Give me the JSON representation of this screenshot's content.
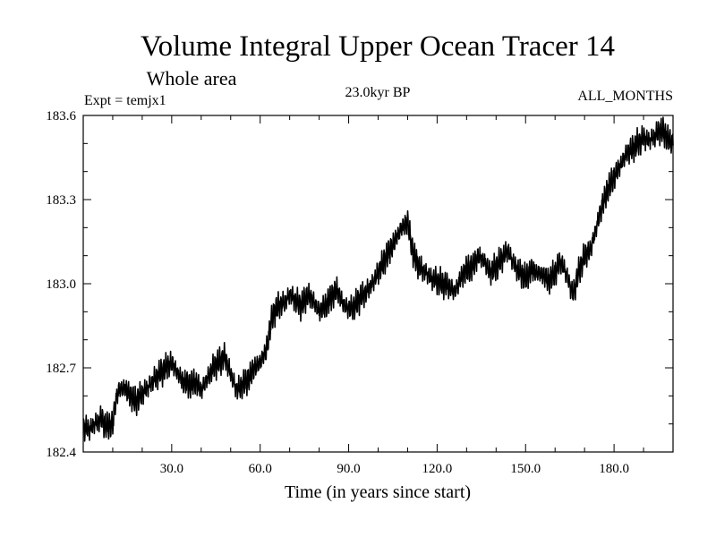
{
  "header": {
    "title": "Volume Integral Upper Ocean Tracer 14",
    "subtitle": "Whole area",
    "experiment": "Expt = temjx1",
    "epoch": "23.0kyr BP",
    "months": "ALL_MONTHS"
  },
  "chart_data": {
    "type": "line",
    "title": "Volume Integral Upper Ocean Tracer 14",
    "subtitle": "Whole area",
    "xlabel": "Time (in years since start)",
    "ylabel": "",
    "xlim": [
      0,
      200
    ],
    "ylim": [
      182.4,
      183.6
    ],
    "xticks": [
      30,
      60,
      90,
      120,
      150,
      180
    ],
    "xtick_labels": [
      "30.0",
      "60.0",
      "90.0",
      "120.0",
      "150.0",
      "180.0"
    ],
    "yticks": [
      182.4,
      182.7,
      183.0,
      183.3,
      183.6
    ],
    "ytick_labels": [
      "182.4",
      "182.7",
      "183.0",
      "183.3",
      "183.6"
    ],
    "grid": false,
    "legend": "none",
    "line_color": "#000000",
    "series": [
      {
        "x": [
          0,
          2,
          4,
          6,
          8,
          10,
          11,
          12,
          14,
          16,
          18,
          20,
          22,
          24,
          26,
          28,
          30,
          32,
          34,
          36,
          38,
          40,
          42,
          44,
          46,
          48,
          50,
          52,
          54,
          56,
          58,
          60,
          62,
          64,
          66,
          68,
          70,
          72,
          74,
          76,
          78,
          80,
          82,
          84,
          86,
          88,
          90,
          92,
          94,
          96,
          98,
          100,
          102,
          104,
          106,
          108,
          110,
          112,
          114,
          116,
          118,
          120,
          122,
          124,
          126,
          128,
          130,
          132,
          134,
          136,
          138,
          140,
          142,
          144,
          146,
          148,
          150,
          152,
          154,
          156,
          158,
          160,
          162,
          164,
          166,
          168,
          170,
          172,
          174,
          176,
          178,
          180,
          182,
          184,
          186,
          188,
          190,
          192,
          194,
          196,
          198,
          200
        ],
        "y": [
          182.49,
          182.48,
          182.5,
          182.52,
          182.49,
          182.5,
          182.58,
          182.62,
          182.63,
          182.6,
          182.58,
          182.61,
          182.63,
          182.66,
          182.68,
          182.7,
          182.72,
          182.68,
          182.65,
          182.64,
          182.65,
          182.62,
          182.66,
          182.7,
          182.72,
          182.74,
          182.68,
          182.62,
          182.64,
          182.66,
          182.7,
          182.72,
          182.76,
          182.88,
          182.92,
          182.93,
          182.96,
          182.94,
          182.92,
          182.96,
          182.94,
          182.9,
          182.92,
          182.95,
          182.98,
          182.93,
          182.91,
          182.92,
          182.95,
          182.97,
          183.0,
          183.04,
          183.08,
          183.12,
          183.16,
          183.2,
          183.22,
          183.1,
          183.06,
          183.04,
          183.02,
          183.01,
          183.0,
          182.99,
          182.97,
          183.02,
          183.05,
          183.06,
          183.1,
          183.08,
          183.04,
          183.06,
          183.09,
          183.12,
          183.07,
          183.04,
          183.02,
          183.05,
          183.04,
          183.03,
          183.01,
          183.04,
          183.08,
          183.03,
          182.96,
          183.04,
          183.1,
          183.12,
          183.2,
          183.28,
          183.34,
          183.38,
          183.42,
          183.46,
          183.48,
          183.5,
          183.52,
          183.51,
          183.53,
          183.55,
          183.52,
          183.5
        ]
      }
    ]
  }
}
